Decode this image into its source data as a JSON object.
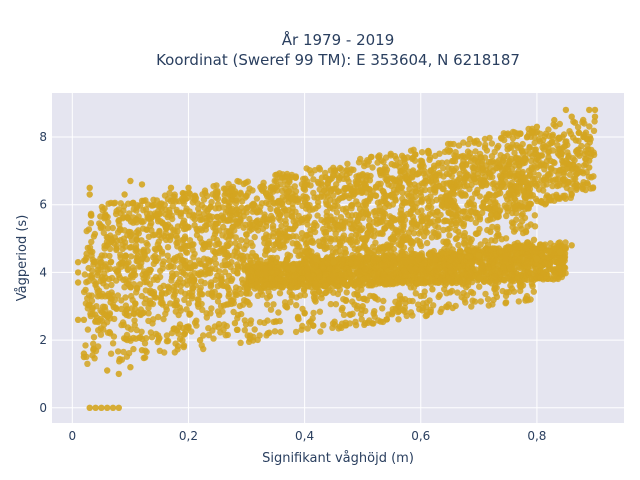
{
  "chart_data": {
    "type": "scatter",
    "title_line1": "År 1979 - 2019",
    "title_line2": "Koordinat (Sweref 99 TM): E 353604, N 6218187",
    "xlabel": "Signifikant våghöjd (m)",
    "ylabel": "Vågperiod (s)",
    "xlim": [
      -0.035,
      0.95
    ],
    "ylim": [
      -0.45,
      9.3
    ],
    "x_ticks": [
      0,
      0.2,
      0.4,
      0.6,
      0.8
    ],
    "x_tick_labels": [
      "0",
      "0,2",
      "0,4",
      "0,6",
      "0,8"
    ],
    "y_ticks": [
      0,
      2,
      4,
      6,
      8
    ],
    "y_tick_labels": [
      "0",
      "2",
      "4",
      "6",
      "8"
    ],
    "grid": true,
    "colors": {
      "marker": "#D4A520",
      "plot_bg": "#E5E5F0",
      "grid": "#ffffff",
      "text": "#2a3f5f"
    },
    "regions": [
      {
        "name": "",
        "x_range": [
          0.02,
          0.8
        ],
        "y_lower": [
          1.2,
          3.2
        ],
        "y_upper": [
          6.0,
          7.6
        ]
      },
      {
        "name": "",
        "x_range": [
          0.02,
          0.9
        ],
        "y_lower": [
          2.0,
          6.4
        ],
        "y_upper": [
          5.9,
          8.6
        ]
      },
      {
        "name": "",
        "x_range": [
          0.3,
          0.85
        ],
        "y_lower": [
          3.5,
          3.8
        ],
        "y_upper": [
          4.2,
          4.9
        ]
      }
    ],
    "points": [
      [
        0.03,
        0
      ],
      [
        0.04,
        0
      ],
      [
        0.05,
        0
      ],
      [
        0.06,
        0
      ],
      [
        0.07,
        0
      ],
      [
        0.08,
        0
      ],
      [
        0.02,
        1.5
      ],
      [
        0.02,
        1.6
      ],
      [
        0.01,
        2.6
      ],
      [
        0.02,
        2.6
      ],
      [
        0.01,
        3.7
      ],
      [
        0.01,
        4.0
      ],
      [
        0.01,
        4.3
      ],
      [
        0.03,
        6.5
      ],
      [
        0.03,
        6.3
      ],
      [
        0.09,
        6.3
      ],
      [
        0.12,
        6.6
      ],
      [
        0.1,
        6.7
      ],
      [
        0.17,
        6.5
      ],
      [
        0.2,
        6.5
      ],
      [
        0.25,
        6.4
      ],
      [
        0.28,
        6.4
      ],
      [
        0.33,
        6.5
      ],
      [
        0.37,
        6.6
      ],
      [
        0.4,
        6.6
      ],
      [
        0.43,
        6.8
      ],
      [
        0.46,
        6.8
      ],
      [
        0.5,
        6.9
      ],
      [
        0.55,
        7.2
      ],
      [
        0.6,
        7.3
      ],
      [
        0.65,
        7.6
      ],
      [
        0.7,
        7.8
      ],
      [
        0.75,
        8.1
      ],
      [
        0.8,
        8.3
      ],
      [
        0.83,
        8.5
      ],
      [
        0.85,
        8.8
      ],
      [
        0.86,
        8.6
      ],
      [
        0.88,
        8.0
      ],
      [
        0.89,
        8.8
      ],
      [
        0.9,
        8.6
      ],
      [
        0.9,
        8.8
      ],
      [
        0.87,
        7.5
      ],
      [
        0.85,
        7.3
      ],
      [
        0.89,
        7.3
      ],
      [
        0.89,
        7.1
      ],
      [
        0.82,
        7.4
      ],
      [
        0.8,
        7.1
      ],
      [
        0.78,
        6.7
      ],
      [
        0.77,
        6.5
      ],
      [
        0.76,
        6.0
      ],
      [
        0.75,
        5.9
      ],
      [
        0.73,
        6.3
      ],
      [
        0.68,
        5.6
      ],
      [
        0.72,
        5.2
      ],
      [
        0.82,
        4.6
      ],
      [
        0.84,
        4.6
      ],
      [
        0.86,
        4.8
      ],
      [
        0.8,
        4.4
      ],
      [
        0.7,
        4.5
      ],
      [
        0.65,
        5.3
      ],
      [
        0.6,
        5.2
      ],
      [
        0.55,
        5.0
      ],
      [
        0.5,
        5.0
      ],
      [
        0.45,
        4.3
      ],
      [
        0.42,
        4.4
      ],
      [
        0.38,
        4.1
      ],
      [
        0.37,
        4.4
      ],
      [
        0.3,
        3.4
      ],
      [
        0.34,
        3.3
      ],
      [
        0.2,
        2.4
      ],
      [
        0.12,
        1.7
      ],
      [
        0.1,
        1.2
      ],
      [
        0.06,
        1.1
      ],
      [
        0.08,
        1.0
      ],
      [
        0.22,
        2.0
      ],
      [
        0.28,
        2.5
      ],
      [
        0.4,
        2.8
      ],
      [
        0.5,
        3.0
      ],
      [
        0.6,
        3.3
      ],
      [
        0.7,
        3.8
      ],
      [
        0.62,
        3.5
      ]
    ]
  }
}
